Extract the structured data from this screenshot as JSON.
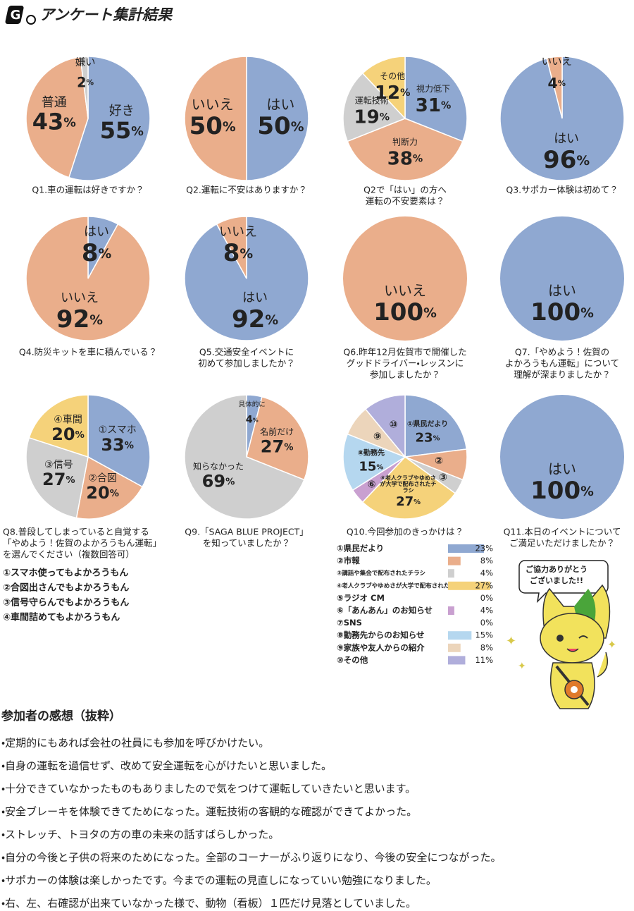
{
  "title": "アンケート集計結果",
  "chart_data": [
    {
      "type": "pie",
      "title": [
        "Q1.車の運転は好きですか？"
      ],
      "categories": [
        "好き",
        "普通",
        "嫌い"
      ],
      "values": [
        55,
        43,
        2
      ],
      "value_labels": [
        "55%",
        "43%",
        "2%"
      ],
      "colors": [
        "#8fa8d1",
        "#eaae8b",
        "#cfcfcf"
      ]
    },
    {
      "type": "pie",
      "title": [
        "Q2.運転に不安はありますか？"
      ],
      "categories": [
        "はい",
        "いいえ"
      ],
      "values": [
        50,
        50
      ],
      "value_labels": [
        "50%",
        "50%"
      ],
      "colors": [
        "#8fa8d1",
        "#eaae8b"
      ]
    },
    {
      "type": "pie",
      "title": [
        "Q2で「はい」の方へ",
        "運転の不安要素は？"
      ],
      "categories": [
        "視力低下",
        "判断力",
        "運転技術",
        "その他"
      ],
      "values": [
        31,
        38,
        19,
        12
      ],
      "value_labels": [
        "31%",
        "38%",
        "19%",
        "12%"
      ],
      "colors": [
        "#8fa8d1",
        "#eaae8b",
        "#cfcfcf",
        "#f5d27a"
      ]
    },
    {
      "type": "pie",
      "title": [
        "Q3.サポカー体験は初めて？"
      ],
      "categories": [
        "はい",
        "いいえ"
      ],
      "values": [
        96,
        4
      ],
      "value_labels": [
        "96%",
        "4%"
      ],
      "colors": [
        "#8fa8d1",
        "#eaae8b"
      ]
    },
    {
      "type": "pie",
      "title": [
        "Q4.防災キットを車に積んでいる？"
      ],
      "categories": [
        "はい",
        "いいえ"
      ],
      "values": [
        8,
        92
      ],
      "value_labels": [
        "8%",
        "92%"
      ],
      "colors": [
        "#8fa8d1",
        "#eaae8b"
      ]
    },
    {
      "type": "pie",
      "title": [
        "Q5.交通安全イベントに",
        "初めて参加しましたか？"
      ],
      "categories": [
        "はい",
        "いいえ"
      ],
      "values": [
        92,
        8
      ],
      "value_labels": [
        "92%",
        "8%"
      ],
      "colors": [
        "#8fa8d1",
        "#eaae8b"
      ]
    },
    {
      "type": "pie",
      "title": [
        "Q6.昨年12月佐賀市で開催した",
        "グッドドライバー・レッスンに",
        "参加しましたか？"
      ],
      "categories": [
        "いいえ"
      ],
      "values": [
        100
      ],
      "value_labels": [
        "100%"
      ],
      "colors": [
        "#eaae8b"
      ]
    },
    {
      "type": "pie",
      "title": [
        "Q7.「やめよう！佐賀の",
        "よかろうもん運転」について",
        "理解が深まりましたか？"
      ],
      "categories": [
        "はい"
      ],
      "values": [
        100
      ],
      "value_labels": [
        "100%"
      ],
      "colors": [
        "#8fa8d1"
      ]
    },
    {
      "type": "pie",
      "title": [
        "Q8.普段してしまっていると自覚する",
        "「やめよう！佐賀のよかろうもん運転」",
        "を選んでください（複数回答可）"
      ],
      "categories": [
        "①スマホ",
        "②合図",
        "③信号",
        "④車間"
      ],
      "values": [
        33,
        20,
        27,
        20
      ],
      "value_labels": [
        "33%",
        "20%",
        "27%",
        "20%"
      ],
      "colors": [
        "#8fa8d1",
        "#eaae8b",
        "#cfcfcf",
        "#f5d27a"
      ],
      "options": [
        "①スマホ使ってもよかろうもん",
        "②合図出さんでもよかろうもん",
        "③信号守らんでもよかろうもん",
        "④車間詰めてもよかろうもん"
      ]
    },
    {
      "type": "pie",
      "title": [
        "Q9.「SAGA BLUE PROJECT」",
        "を知っていましたか？"
      ],
      "categories": [
        "具体的に",
        "名前だけ",
        "知らなかった"
      ],
      "values": [
        4,
        27,
        69
      ],
      "value_labels": [
        "4%",
        "27%",
        "69%"
      ],
      "colors": [
        "#8fa8d1",
        "#eaae8b",
        "#cfcfcf"
      ]
    },
    {
      "type": "pie",
      "title": [
        "Q10.今回参加のきっかけは？"
      ],
      "categories": [
        "①県民だより",
        "②市報",
        "③講話や集会で配布されたチラシ",
        "④老人クラブやゆめさが大学で配布されたチラシ",
        "⑤ラジオ CM",
        "⑥「あんあん」のお知らせ",
        "⑦SNS",
        "⑧勤務先からのお知らせ",
        "⑨家族や友人からの紹介",
        "⑩その他"
      ],
      "values": [
        23,
        8,
        4,
        27,
        0,
        4,
        0,
        15,
        8,
        11
      ],
      "value_labels": [
        "23%",
        "8%",
        "4%",
        "27%",
        "0%",
        "4%",
        "0%",
        "15%",
        "8%",
        "11%"
      ],
      "slice_labels": [
        "①県民だより",
        "②",
        "③",
        "④老人クラブやゆめさが大学で配布されたチラシ",
        null,
        "⑥",
        null,
        "⑧勤務先",
        "⑨",
        "⑩"
      ],
      "colors": [
        "#8fa8d1",
        "#eaae8b",
        "#cfcfcf",
        "#f5d27a",
        "#ffffff",
        "#c9a0d0",
        "#ffffff",
        "#b5d7ef",
        "#ecd5bb",
        "#b0aedb"
      ]
    },
    {
      "type": "pie",
      "title": [
        "Q11.本日のイベントについて",
        "ご満足いただけましたか？"
      ],
      "categories": [
        "はい"
      ],
      "values": [
        100
      ],
      "value_labels": [
        "100%"
      ],
      "colors": [
        "#8fa8d1"
      ]
    }
  ],
  "bubble": [
    "ご協力ありがとう",
    "ございました!!"
  ],
  "comments": {
    "title": "参加者の感想（抜粋）",
    "items": [
      "・定期的にもあれば会社の社員にも参加を呼びかけたい。",
      "・自身の運転を過信せず、改めて安全運転を心がけたいと思いました。",
      "・十分できていなかったものもありましたので気をつけて運転していきたいと思います。",
      "・安全ブレーキを体験できてためになった。運転技術の客観的な確認ができてよかった。",
      "・ストレッチ、トヨタの方の車の未来の話すばらしかった。",
      "・自分の今後と子供の将来のためになった。全部のコーナーがふり返りになり、今後の安全につながった。",
      "・サポカーの体験は楽しかったです。今までの運転の見直しになっていい勉強になりました。",
      "・右、左、右確認が出来ていなかった様で、動物（看板）１匹だけ見落としていました。"
    ]
  }
}
